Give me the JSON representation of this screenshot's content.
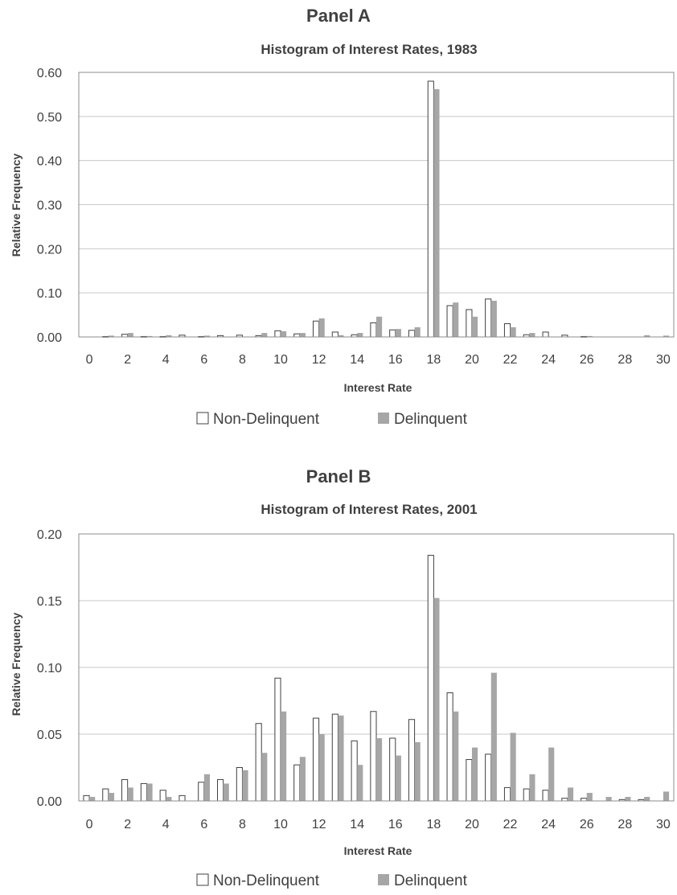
{
  "chart_data": [
    {
      "type": "bar",
      "panel_title": "Panel A",
      "title": "Histogram of Interest Rates, 1983",
      "xlabel": "Interest Rate",
      "ylabel": "Relative Frequency",
      "ylim": [
        0,
        0.6
      ],
      "yticks": [
        "0.00",
        "0.10",
        "0.20",
        "0.30",
        "0.40",
        "0.50",
        "0.60"
      ],
      "xticks": [
        "0",
        "2",
        "4",
        "6",
        "8",
        "10",
        "12",
        "14",
        "16",
        "18",
        "20",
        "22",
        "24",
        "26",
        "28",
        "30"
      ],
      "categories": [
        0,
        1,
        2,
        3,
        4,
        5,
        6,
        7,
        8,
        9,
        10,
        11,
        12,
        13,
        14,
        15,
        16,
        17,
        18,
        19,
        20,
        21,
        22,
        23,
        24,
        25,
        26,
        27,
        28,
        29,
        30
      ],
      "grid": "horizontal",
      "legend_position": "bottom",
      "series": [
        {
          "name": "Non-Delinquent",
          "color": "#ffffff",
          "stroke": "#404040",
          "values": [
            0.0,
            0.001,
            0.006,
            0.001,
            0.001,
            0.004,
            0.001,
            0.003,
            0.004,
            0.003,
            0.014,
            0.007,
            0.036,
            0.011,
            0.005,
            0.032,
            0.016,
            0.015,
            0.58,
            0.071,
            0.062,
            0.086,
            0.03,
            0.005,
            0.011,
            0.004,
            0.001,
            0.0,
            0.0,
            0.0,
            0.0
          ]
        },
        {
          "name": "Delinquent",
          "color": "#a6a6a6",
          "stroke": "none",
          "values": [
            0.0,
            0.003,
            0.009,
            0.002,
            0.004,
            0.0,
            0.003,
            0.0,
            0.0,
            0.009,
            0.013,
            0.009,
            0.042,
            0.004,
            0.009,
            0.046,
            0.018,
            0.022,
            0.562,
            0.078,
            0.046,
            0.082,
            0.022,
            0.009,
            0.0,
            0.0,
            0.002,
            0.0,
            0.0,
            0.004,
            0.003
          ]
        }
      ]
    },
    {
      "type": "bar",
      "panel_title": "Panel B",
      "title": "Histogram of Interest Rates, 2001",
      "xlabel": "Interest Rate",
      "ylabel": "Relative Frequency",
      "ylim": [
        0,
        0.2
      ],
      "yticks": [
        "0.00",
        "0.05",
        "0.10",
        "0.15",
        "0.20"
      ],
      "xticks": [
        "0",
        "2",
        "4",
        "6",
        "8",
        "10",
        "12",
        "14",
        "16",
        "18",
        "20",
        "22",
        "24",
        "26",
        "28",
        "30"
      ],
      "categories": [
        0,
        1,
        2,
        3,
        4,
        5,
        6,
        7,
        8,
        9,
        10,
        11,
        12,
        13,
        14,
        15,
        16,
        17,
        18,
        19,
        20,
        21,
        22,
        23,
        24,
        25,
        26,
        27,
        28,
        29,
        30
      ],
      "grid": "horizontal",
      "legend_position": "bottom",
      "series": [
        {
          "name": "Non-Delinquent",
          "color": "#ffffff",
          "stroke": "#404040",
          "values": [
            0.004,
            0.009,
            0.016,
            0.013,
            0.008,
            0.004,
            0.014,
            0.016,
            0.025,
            0.058,
            0.092,
            0.027,
            0.062,
            0.065,
            0.045,
            0.067,
            0.047,
            0.061,
            0.184,
            0.081,
            0.031,
            0.035,
            0.01,
            0.009,
            0.008,
            0.002,
            0.002,
            0.0,
            0.001,
            0.001,
            0.0
          ]
        },
        {
          "name": "Delinquent",
          "color": "#a6a6a6",
          "stroke": "none",
          "values": [
            0.003,
            0.006,
            0.01,
            0.013,
            0.003,
            0.0,
            0.02,
            0.013,
            0.023,
            0.036,
            0.067,
            0.033,
            0.05,
            0.064,
            0.027,
            0.047,
            0.034,
            0.044,
            0.152,
            0.067,
            0.04,
            0.096,
            0.051,
            0.02,
            0.04,
            0.01,
            0.006,
            0.003,
            0.003,
            0.003,
            0.007
          ]
        }
      ]
    }
  ]
}
